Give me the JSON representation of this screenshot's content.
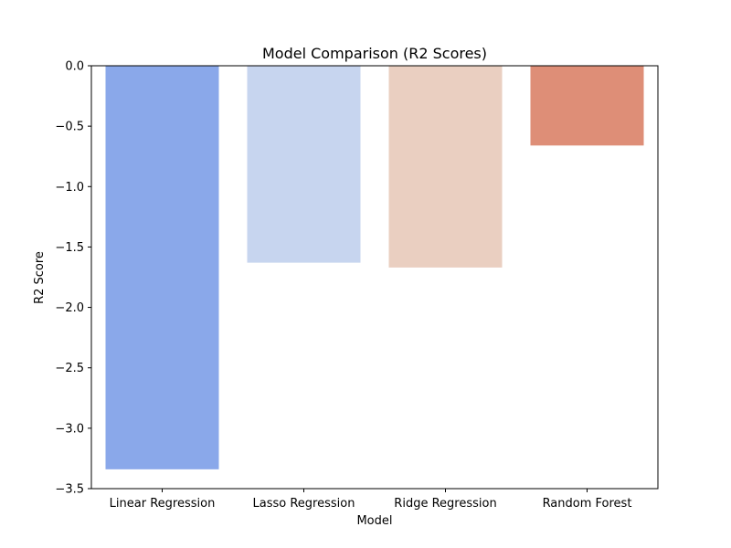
{
  "chart_data": {
    "type": "bar",
    "title": "Model Comparison (R2 Scores)",
    "xlabel": "Model",
    "ylabel": "R2 Score",
    "categories": [
      "Linear Regression",
      "Lasso Regression",
      "Ridge Regression",
      "Random Forest"
    ],
    "values": [
      -3.34,
      -1.63,
      -1.67,
      -0.66
    ],
    "colors": [
      "#8aa8ea",
      "#c7d5ef",
      "#eacfc1",
      "#de8e77"
    ],
    "ylim": [
      -3.5,
      0.0
    ],
    "yticks": [
      0.0,
      -0.5,
      -1.0,
      -1.5,
      -2.0,
      -2.5,
      -3.0,
      -3.5
    ],
    "ytick_labels": [
      "0.0",
      "−0.5",
      "−1.0",
      "−1.5",
      "−2.0",
      "−2.5",
      "−3.0",
      "−3.5"
    ],
    "grid": false,
    "legend": "none"
  }
}
